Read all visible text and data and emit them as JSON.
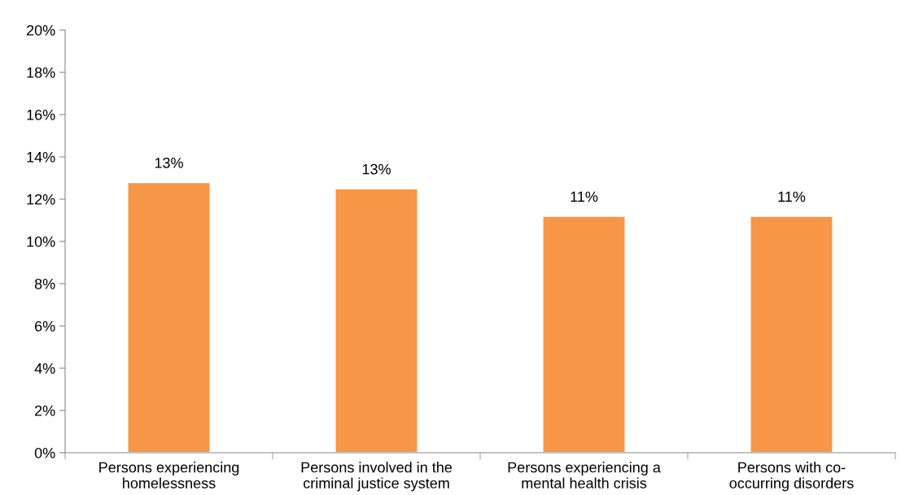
{
  "chart_data": {
    "type": "bar",
    "categories": [
      "Persons experiencing\nhomelessness",
      "Persons involved in the\ncriminal justice system",
      "Persons experiencing a\nmental health crisis",
      "Persons with co-\noccurring disorders"
    ],
    "values": [
      12.8,
      12.5,
      11.2,
      11.2
    ],
    "value_labels": [
      "13%",
      "13%",
      "11%",
      "11%"
    ],
    "color": "#f79646",
    "ylim": [
      0,
      20
    ],
    "yticks": [
      {
        "value": 0,
        "label": "0%"
      },
      {
        "value": 2,
        "label": "2%"
      },
      {
        "value": 4,
        "label": "4%"
      },
      {
        "value": 6,
        "label": "6%"
      },
      {
        "value": 8,
        "label": "8%"
      },
      {
        "value": 10,
        "label": "10%"
      },
      {
        "value": 12,
        "label": "12%"
      },
      {
        "value": 14,
        "label": "14%"
      },
      {
        "value": 16,
        "label": "16%"
      },
      {
        "value": 18,
        "label": "18%"
      },
      {
        "value": 20,
        "label": "20%"
      }
    ],
    "grid": false,
    "legend": false
  }
}
